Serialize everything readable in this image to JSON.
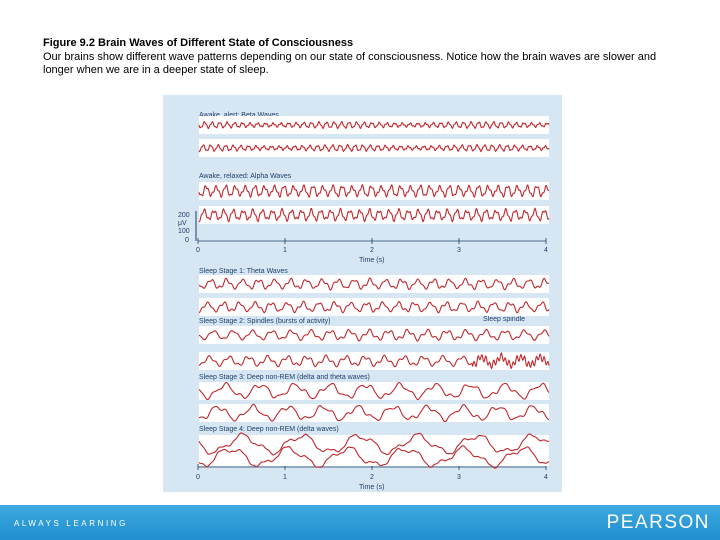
{
  "caption": {
    "title": "Figure 9.2   Brain Waves of Different State of Consciousness",
    "body": "Our brains show different wave patterns depending on our state of consciousness. Notice how the brain waves are slower and longer when we are in a deeper state of sleep."
  },
  "figure": {
    "panels": [
      {
        "label": "Awake, alert: Beta Waves",
        "traces": 2,
        "cycles_per_trace": 46,
        "amplitude": 2.2
      },
      {
        "label": "Awake, relaxed: Alpha Waves",
        "traces": 2,
        "cycles_per_trace": 36,
        "amplitude": 4.5
      },
      {
        "label": "Sleep Stage 1: Theta Waves",
        "traces": 2,
        "cycles_per_trace": 22,
        "amplitude": 4
      },
      {
        "label": "Sleep Stage 2: Spindles (bursts of activity)",
        "traces": 2,
        "cycles_per_trace": 18,
        "amplitude": 4
      },
      {
        "label": "Sleep Stage 3: Deep non-REM (delta and theta waves)",
        "traces": 2,
        "cycles_per_trace": 10,
        "amplitude": 6
      },
      {
        "label": "Sleep Stage 4: Deep non-REM (delta waves)",
        "traces": 2,
        "cycles_per_trace": 6,
        "amplitude": 8
      }
    ],
    "spindle_label": "Sleep spindle",
    "scale": {
      "unit": "μV",
      "ticks": [
        "200",
        "100",
        "0"
      ]
    },
    "time_axis": {
      "label": "Time (s)",
      "ticks": [
        "0",
        "1",
        "2",
        "3",
        "4"
      ]
    },
    "colors": {
      "trace": "#c0282d",
      "background": "#d6e6f2",
      "band": "#ffffff",
      "text": "#1f3f6a"
    }
  },
  "footer": {
    "tagline": "ALWAYS LEARNING",
    "brand": "PEARSON"
  }
}
